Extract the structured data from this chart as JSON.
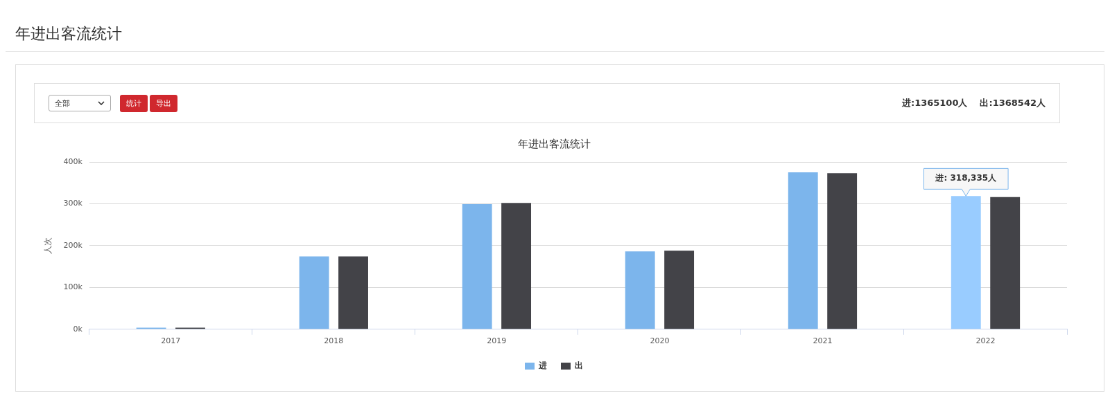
{
  "chart_data": {
    "type": "bar",
    "title": "年进出客流统计",
    "ylabel": "人次",
    "categories": [
      "2017",
      "2018",
      "2019",
      "2020",
      "2021",
      "2022"
    ],
    "series": [
      {
        "name": "进",
        "color": "#7cb5ec",
        "colors": [
          "#7cb5ec",
          "#7cb5ec",
          "#7cb5ec",
          "#7cb5ec",
          "#7cb5ec",
          "#99ccff"
        ],
        "values": [
          4000,
          174000,
          299000,
          186000,
          375000,
          318335
        ]
      },
      {
        "name": "出",
        "color": "#434348",
        "values": [
          4000,
          174000,
          302000,
          188000,
          373000,
          316000
        ]
      }
    ],
    "ylim": [
      0,
      400000
    ],
    "yticks": [
      {
        "value": 0,
        "label": "0k"
      },
      {
        "value": 100000,
        "label": "100k"
      },
      {
        "value": 200000,
        "label": "200k"
      },
      {
        "value": 300000,
        "label": "300k"
      },
      {
        "value": 400000,
        "label": "400k"
      }
    ],
    "grid": "y",
    "legend": "bottom",
    "annotations": [
      "年进出客流统计",
      "全部",
      "统计",
      "导出",
      "进:1365100人",
      "出:1368542人",
      "进: 318,335人"
    ]
  }
}
